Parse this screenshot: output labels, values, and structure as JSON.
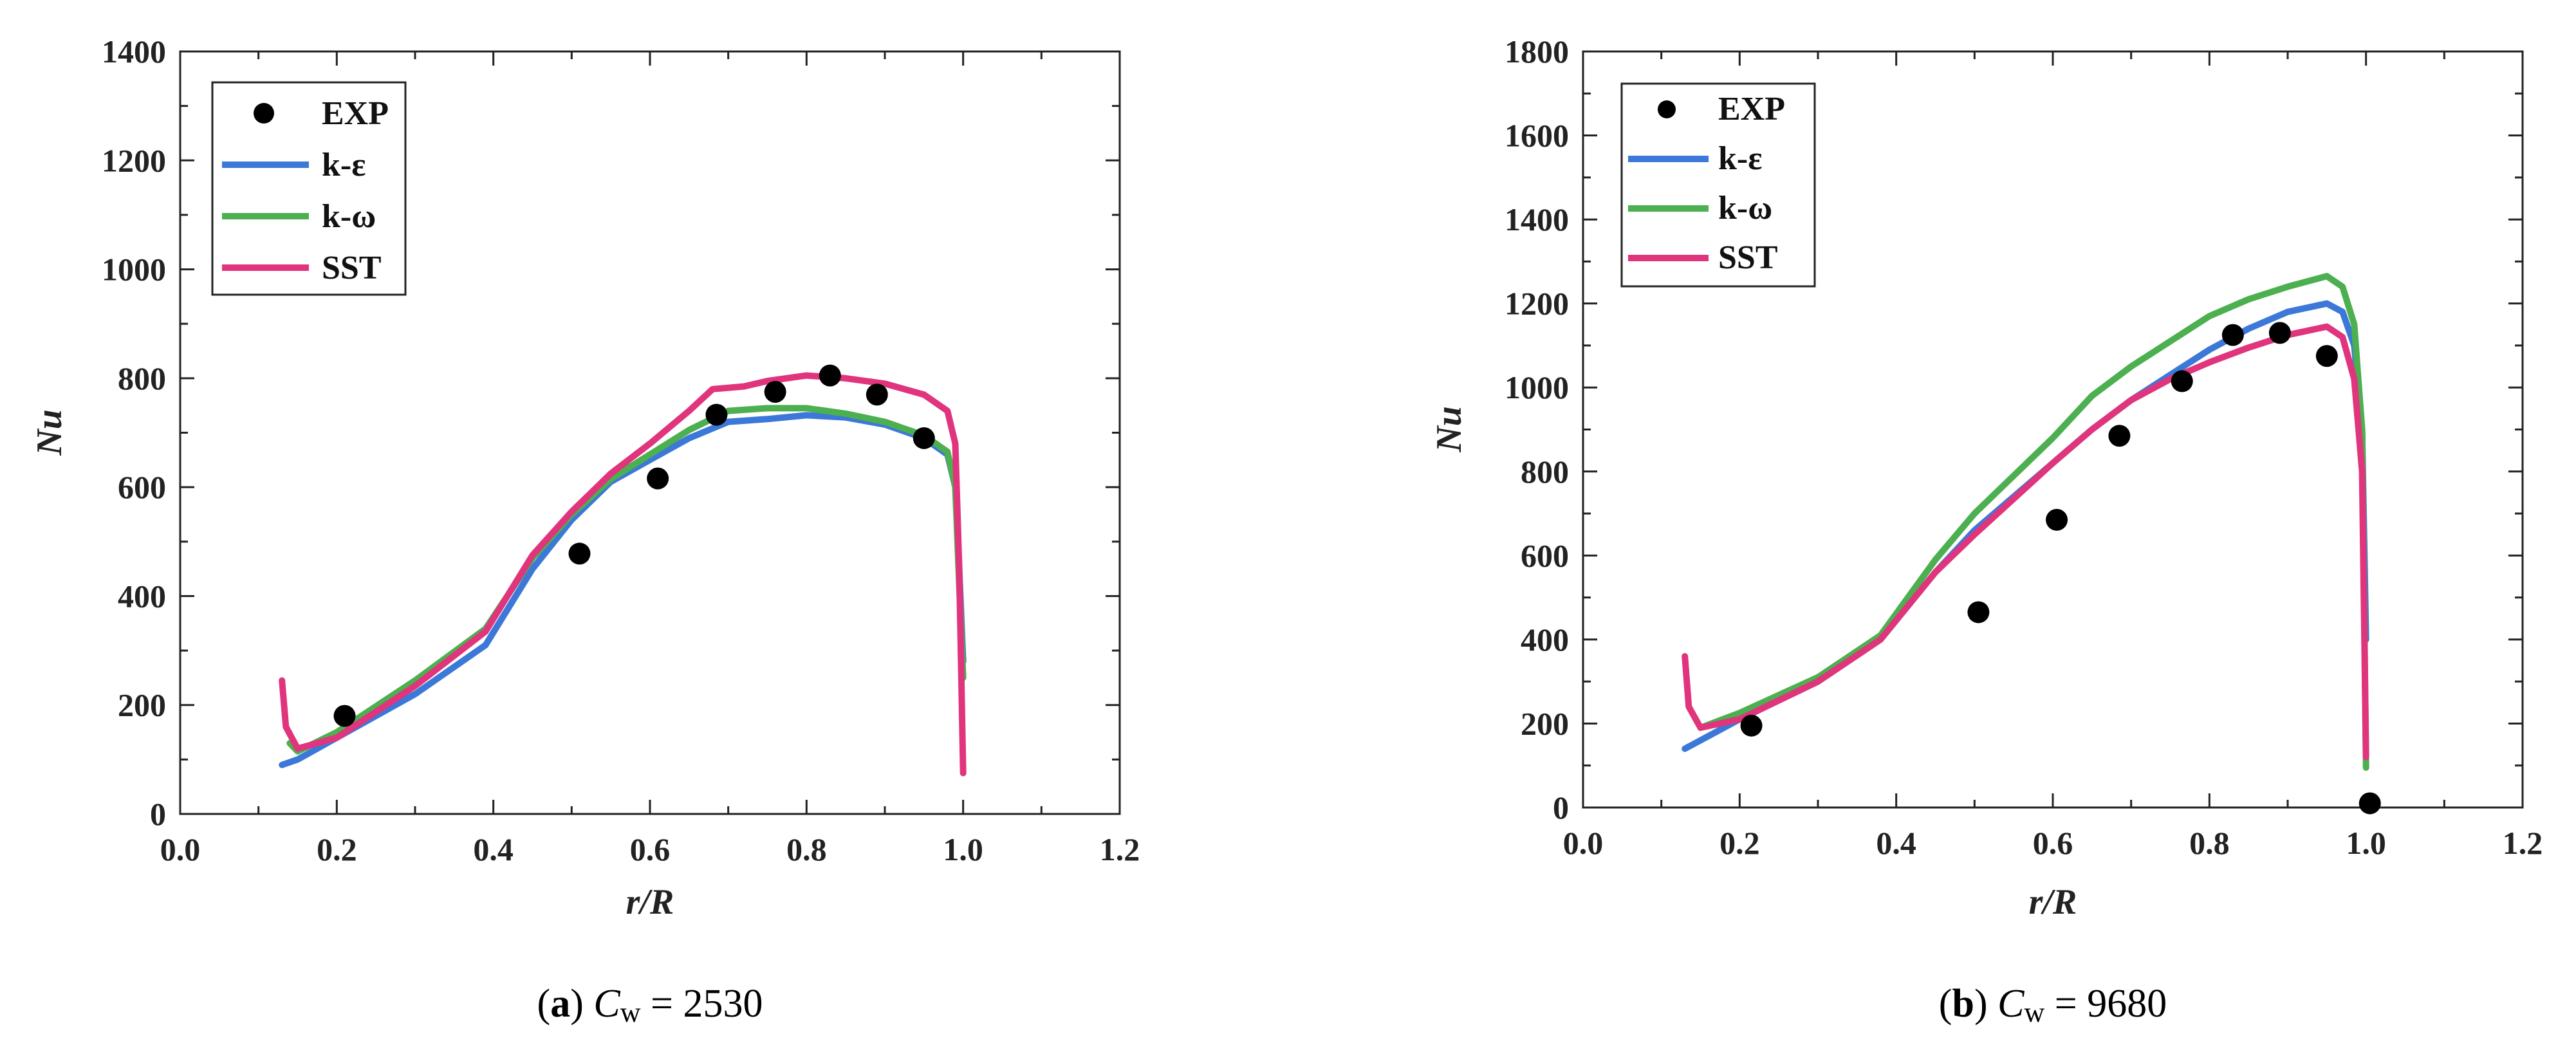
{
  "chart_data": [
    {
      "type": "line",
      "panel_label": "a",
      "caption_symbol": "C",
      "caption_subscript": "w",
      "caption_value": " = 2530",
      "xlabel": "r/R",
      "ylabel": "Nu",
      "xlim": [
        0.0,
        1.2
      ],
      "ylim": [
        0,
        1400
      ],
      "xticks": [
        0.0,
        0.2,
        0.4,
        0.6,
        0.8,
        1.0,
        1.2
      ],
      "xtick_labels": [
        "0.0",
        "0.2",
        "0.4",
        "0.6",
        "0.8",
        "1.0",
        "1.2"
      ],
      "yticks": [
        0,
        200,
        400,
        600,
        800,
        1000,
        1200,
        1400
      ],
      "ytick_labels": [
        "0",
        "200",
        "400",
        "600",
        "800",
        "1000",
        "1200",
        "1400"
      ],
      "legend_position": "top-left",
      "scatter": {
        "name": "EXP",
        "color": "#000000",
        "points": [
          {
            "x": 0.21,
            "y": 180
          },
          {
            "x": 0.51,
            "y": 478
          },
          {
            "x": 0.61,
            "y": 616
          },
          {
            "x": 0.685,
            "y": 733
          },
          {
            "x": 0.76,
            "y": 775
          },
          {
            "x": 0.83,
            "y": 805
          },
          {
            "x": 0.89,
            "y": 770
          },
          {
            "x": 0.95,
            "y": 690
          }
        ]
      },
      "series": [
        {
          "name": "k-ε",
          "color": "#3c78d8",
          "points": [
            [
              0.13,
              90
            ],
            [
              0.15,
              100
            ],
            [
              0.2,
              140
            ],
            [
              0.3,
              220
            ],
            [
              0.39,
              310
            ],
            [
              0.45,
              450
            ],
            [
              0.5,
              540
            ],
            [
              0.55,
              610
            ],
            [
              0.6,
              650
            ],
            [
              0.65,
              690
            ],
            [
              0.7,
              720
            ],
            [
              0.75,
              725
            ],
            [
              0.8,
              732
            ],
            [
              0.85,
              728
            ],
            [
              0.9,
              715
            ],
            [
              0.95,
              690
            ],
            [
              0.98,
              660
            ],
            [
              0.99,
              600
            ],
            [
              0.995,
              450
            ],
            [
              1.0,
              280
            ]
          ]
        },
        {
          "name": "k-ω",
          "color": "#4caf50",
          "points": [
            [
              0.14,
              130
            ],
            [
              0.15,
              115
            ],
            [
              0.2,
              150
            ],
            [
              0.3,
              245
            ],
            [
              0.39,
              340
            ],
            [
              0.45,
              470
            ],
            [
              0.5,
              550
            ],
            [
              0.55,
              615
            ],
            [
              0.6,
              660
            ],
            [
              0.65,
              705
            ],
            [
              0.7,
              740
            ],
            [
              0.75,
              745
            ],
            [
              0.8,
              745
            ],
            [
              0.85,
              735
            ],
            [
              0.9,
              720
            ],
            [
              0.95,
              695
            ],
            [
              0.98,
              665
            ],
            [
              0.99,
              600
            ],
            [
              0.995,
              420
            ],
            [
              1.0,
              250
            ]
          ]
        },
        {
          "name": "SST",
          "color": "#e0347c",
          "points": [
            [
              0.13,
              245
            ],
            [
              0.135,
              160
            ],
            [
              0.15,
              120
            ],
            [
              0.2,
              140
            ],
            [
              0.3,
              235
            ],
            [
              0.39,
              335
            ],
            [
              0.45,
              475
            ],
            [
              0.5,
              555
            ],
            [
              0.55,
              625
            ],
            [
              0.6,
              680
            ],
            [
              0.65,
              740
            ],
            [
              0.68,
              780
            ],
            [
              0.72,
              785
            ],
            [
              0.75,
              795
            ],
            [
              0.8,
              805
            ],
            [
              0.85,
              800
            ],
            [
              0.9,
              790
            ],
            [
              0.95,
              770
            ],
            [
              0.98,
              740
            ],
            [
              0.99,
              680
            ],
            [
              0.995,
              450
            ],
            [
              1.0,
              75
            ]
          ]
        }
      ]
    },
    {
      "type": "line",
      "panel_label": "b",
      "caption_symbol": "C",
      "caption_subscript": "w",
      "caption_value": " = 9680",
      "xlabel": "r/R",
      "ylabel": "Nu",
      "xlim": [
        0.0,
        1.2
      ],
      "ylim": [
        0,
        1800
      ],
      "xticks": [
        0.0,
        0.2,
        0.4,
        0.6,
        0.8,
        1.0,
        1.2
      ],
      "xtick_labels": [
        "0.0",
        "0.2",
        "0.4",
        "0.6",
        "0.8",
        "1.0",
        "1.2"
      ],
      "yticks": [
        0,
        200,
        400,
        600,
        800,
        1000,
        1200,
        1400,
        1600,
        1800
      ],
      "ytick_labels": [
        "0",
        "200",
        "400",
        "600",
        "800",
        "1000",
        "1200",
        "1400",
        "1600",
        "1800"
      ],
      "legend_position": "top-left",
      "scatter": {
        "name": "EXP",
        "color": "#000000",
        "points": [
          {
            "x": 0.215,
            "y": 195
          },
          {
            "x": 0.505,
            "y": 465
          },
          {
            "x": 0.605,
            "y": 685
          },
          {
            "x": 0.685,
            "y": 885
          },
          {
            "x": 0.765,
            "y": 1015
          },
          {
            "x": 0.83,
            "y": 1125
          },
          {
            "x": 0.89,
            "y": 1130
          },
          {
            "x": 0.95,
            "y": 1075
          },
          {
            "x": 1.005,
            "y": 10
          }
        ]
      },
      "series": [
        {
          "name": "k-ε",
          "color": "#3c78d8",
          "points": [
            [
              0.13,
              140
            ],
            [
              0.15,
              160
            ],
            [
              0.2,
              210
            ],
            [
              0.3,
              300
            ],
            [
              0.38,
              400
            ],
            [
              0.45,
              560
            ],
            [
              0.5,
              660
            ],
            [
              0.55,
              740
            ],
            [
              0.6,
              820
            ],
            [
              0.65,
              900
            ],
            [
              0.7,
              970
            ],
            [
              0.75,
              1030
            ],
            [
              0.8,
              1090
            ],
            [
              0.85,
              1140
            ],
            [
              0.9,
              1180
            ],
            [
              0.95,
              1200
            ],
            [
              0.97,
              1180
            ],
            [
              0.985,
              1100
            ],
            [
              0.995,
              900
            ],
            [
              1.0,
              400
            ]
          ]
        },
        {
          "name": "k-ω",
          "color": "#4caf50",
          "points": [
            [
              0.15,
              190
            ],
            [
              0.2,
              225
            ],
            [
              0.3,
              310
            ],
            [
              0.38,
              410
            ],
            [
              0.45,
              590
            ],
            [
              0.5,
              700
            ],
            [
              0.55,
              790
            ],
            [
              0.6,
              880
            ],
            [
              0.65,
              980
            ],
            [
              0.7,
              1050
            ],
            [
              0.75,
              1110
            ],
            [
              0.8,
              1170
            ],
            [
              0.85,
              1210
            ],
            [
              0.9,
              1240
            ],
            [
              0.95,
              1265
            ],
            [
              0.97,
              1240
            ],
            [
              0.985,
              1150
            ],
            [
              0.995,
              900
            ],
            [
              1.0,
              95
            ]
          ]
        },
        {
          "name": "SST",
          "color": "#e0347c",
          "points": [
            [
              0.13,
              360
            ],
            [
              0.135,
              240
            ],
            [
              0.15,
              190
            ],
            [
              0.2,
              210
            ],
            [
              0.3,
              300
            ],
            [
              0.38,
              400
            ],
            [
              0.45,
              560
            ],
            [
              0.5,
              650
            ],
            [
              0.55,
              735
            ],
            [
              0.6,
              820
            ],
            [
              0.65,
              900
            ],
            [
              0.7,
              970
            ],
            [
              0.75,
              1020
            ],
            [
              0.8,
              1060
            ],
            [
              0.85,
              1095
            ],
            [
              0.9,
              1125
            ],
            [
              0.95,
              1145
            ],
            [
              0.97,
              1120
            ],
            [
              0.985,
              1020
            ],
            [
              0.995,
              800
            ],
            [
              1.0,
              120
            ]
          ]
        }
      ]
    }
  ]
}
